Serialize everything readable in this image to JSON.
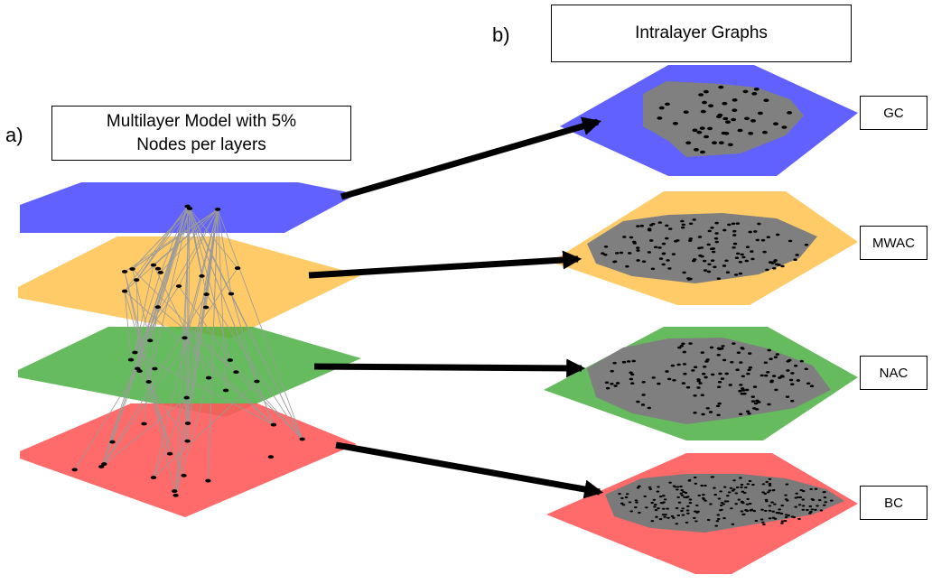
{
  "panel_a": {
    "letter": "a)",
    "title_line1": "Multilayer Model with 5%",
    "title_line2": "Nodes per layers"
  },
  "panel_b": {
    "letter": "b)",
    "title": "Intralayer Graphs"
  },
  "layers": [
    {
      "id": "gc",
      "label": "GC",
      "color": "#5050ff"
    },
    {
      "id": "mwac",
      "label": "MWAC",
      "color": "#ffc24d"
    },
    {
      "id": "nac",
      "label": "NAC",
      "color": "#4caf43"
    },
    {
      "id": "bc",
      "label": "BC",
      "color": "#ff5a5a"
    }
  ]
}
